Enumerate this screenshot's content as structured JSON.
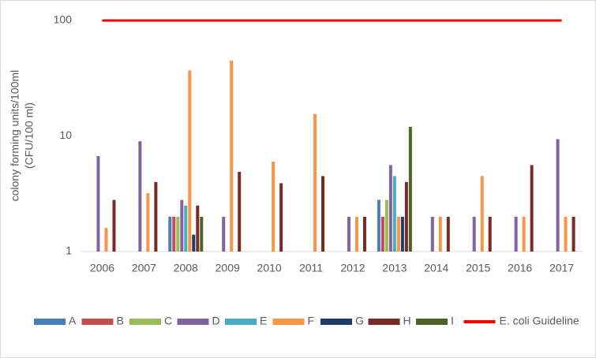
{
  "chart_data": {
    "type": "bar",
    "ylabel": [
      "colony forming units/100ml",
      "(CFU/100 ml)"
    ],
    "categories": [
      "2006",
      "2007",
      "2008",
      "2009",
      "2010",
      "2011",
      "2012",
      "2013",
      "2014",
      "2015",
      "2016",
      "2017"
    ],
    "log_scale": true,
    "ylim": [
      1,
      100
    ],
    "yticks": [
      1,
      10,
      100
    ],
    "grid": false,
    "legend": "bottom",
    "series": [
      {
        "name": "A",
        "color": "#4a7ebb",
        "values": [
          null,
          null,
          2,
          null,
          null,
          null,
          null,
          2.8,
          null,
          null,
          null,
          null
        ]
      },
      {
        "name": "B",
        "color": "#c0504d",
        "values": [
          null,
          null,
          2,
          null,
          null,
          null,
          null,
          2,
          null,
          null,
          null,
          null
        ]
      },
      {
        "name": "C",
        "color": "#9bbb59",
        "values": [
          null,
          null,
          2,
          null,
          null,
          null,
          null,
          2.8,
          null,
          null,
          null,
          null
        ]
      },
      {
        "name": "D",
        "color": "#8064a2",
        "values": [
          6.7,
          9,
          2.8,
          2,
          null,
          null,
          2,
          5.6,
          2,
          2,
          2,
          9.4
        ]
      },
      {
        "name": "E",
        "color": "#4bacc6",
        "values": [
          null,
          null,
          2.5,
          null,
          null,
          null,
          null,
          4.5,
          null,
          null,
          null,
          null
        ]
      },
      {
        "name": "F",
        "color": "#f79646",
        "values": [
          1.6,
          3.2,
          37,
          45,
          6,
          15.5,
          2,
          2,
          2,
          4.5,
          2,
          2
        ]
      },
      {
        "name": "G",
        "color": "#1f3d66",
        "values": [
          null,
          null,
          1.4,
          null,
          null,
          null,
          null,
          2,
          null,
          null,
          null,
          null
        ]
      },
      {
        "name": "H",
        "color": "#772c2a",
        "values": [
          2.8,
          4,
          2.5,
          4.9,
          3.9,
          4.5,
          2,
          4,
          2,
          2,
          5.6,
          2
        ]
      },
      {
        "name": "I",
        "color": "#4f6228",
        "values": [
          null,
          null,
          2,
          null,
          null,
          null,
          null,
          12,
          null,
          null,
          null,
          null
        ]
      },
      {
        "name": "E. coli Guideline",
        "color": "#ff0000",
        "type": "line",
        "values": [
          100,
          100,
          100,
          100,
          100,
          100,
          100,
          100,
          100,
          100,
          100,
          100
        ]
      }
    ]
  }
}
